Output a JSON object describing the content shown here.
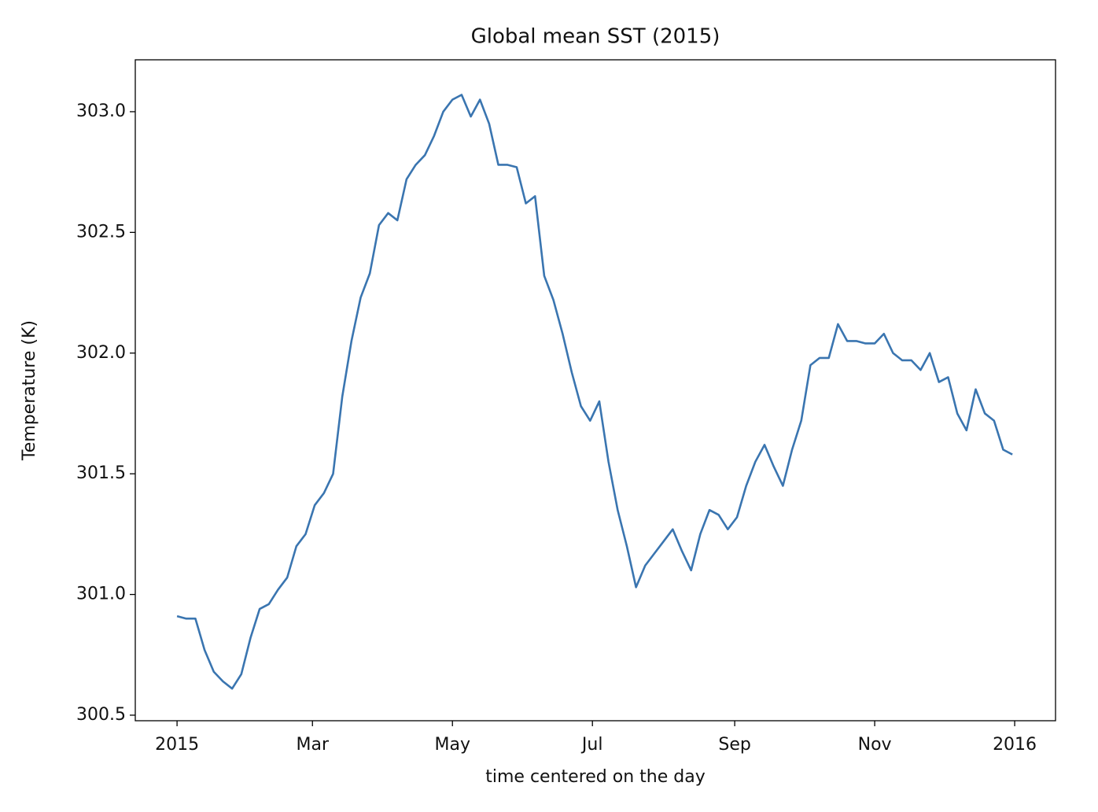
{
  "chart_data": {
    "type": "line",
    "title": "Global mean SST (2015)",
    "x_label": "time centered on the day",
    "y_label": "Temperature (K)",
    "x": [
      0,
      4,
      8,
      12,
      16,
      20,
      24,
      28,
      32,
      36,
      40,
      44,
      48,
      52,
      56,
      60,
      64,
      68,
      72,
      76,
      80,
      84,
      88,
      92,
      96,
      100,
      104,
      108,
      112,
      116,
      120,
      124,
      128,
      132,
      136,
      140,
      144,
      148,
      152,
      156,
      160,
      164,
      168,
      172,
      176,
      180,
      184,
      188,
      192,
      196,
      200,
      204,
      208,
      212,
      216,
      220,
      224,
      228,
      232,
      236,
      240,
      244,
      248,
      252,
      256,
      260,
      264,
      268,
      272,
      276,
      280,
      284,
      288,
      292,
      296,
      300,
      304,
      308,
      312,
      316,
      320,
      324,
      328,
      332,
      336,
      340,
      344,
      348,
      352,
      356,
      360,
      364
    ],
    "values": [
      300.91,
      300.9,
      300.9,
      300.77,
      300.68,
      300.64,
      300.61,
      300.67,
      300.82,
      300.94,
      300.96,
      301.02,
      301.07,
      301.2,
      301.25,
      301.37,
      301.42,
      301.5,
      301.82,
      302.05,
      302.23,
      302.33,
      302.53,
      302.58,
      302.55,
      302.72,
      302.78,
      302.82,
      302.9,
      303.0,
      303.05,
      303.07,
      302.98,
      303.05,
      302.95,
      302.78,
      302.78,
      302.77,
      302.62,
      302.65,
      302.32,
      302.22,
      302.08,
      301.92,
      301.78,
      301.72,
      301.8,
      301.55,
      301.35,
      301.2,
      301.03,
      301.12,
      301.17,
      301.22,
      301.27,
      301.18,
      301.1,
      301.25,
      301.35,
      301.33,
      301.27,
      301.32,
      301.45,
      301.55,
      301.62,
      301.53,
      301.45,
      301.6,
      301.72,
      301.95,
      301.98,
      301.98,
      302.12,
      302.05,
      302.05,
      302.04,
      302.04,
      302.08,
      302.0,
      301.97,
      301.97,
      301.93,
      302.0,
      301.88,
      301.9,
      301.75,
      301.68,
      301.85,
      301.75,
      301.72,
      301.6,
      301.58
    ],
    "color": "#3a75b0",
    "xlim": [
      -18.2,
      382.8
    ],
    "xticks": [
      {
        "value": 0,
        "label": "2015"
      },
      {
        "value": 59,
        "label": "Mar"
      },
      {
        "value": 120,
        "label": "May"
      },
      {
        "value": 181,
        "label": "Jul"
      },
      {
        "value": 243,
        "label": "Sep"
      },
      {
        "value": 304,
        "label": "Nov"
      },
      {
        "value": 365,
        "label": "2016"
      }
    ],
    "ylim": [
      300.477,
      303.215
    ],
    "yticks": [
      300.5,
      {
        "value": 301,
        "label": "301.0"
      },
      301.5,
      {
        "value": 302,
        "label": "302.0"
      },
      302.5,
      {
        "value": 303,
        "label": "303.0"
      }
    ],
    "grid": false
  }
}
